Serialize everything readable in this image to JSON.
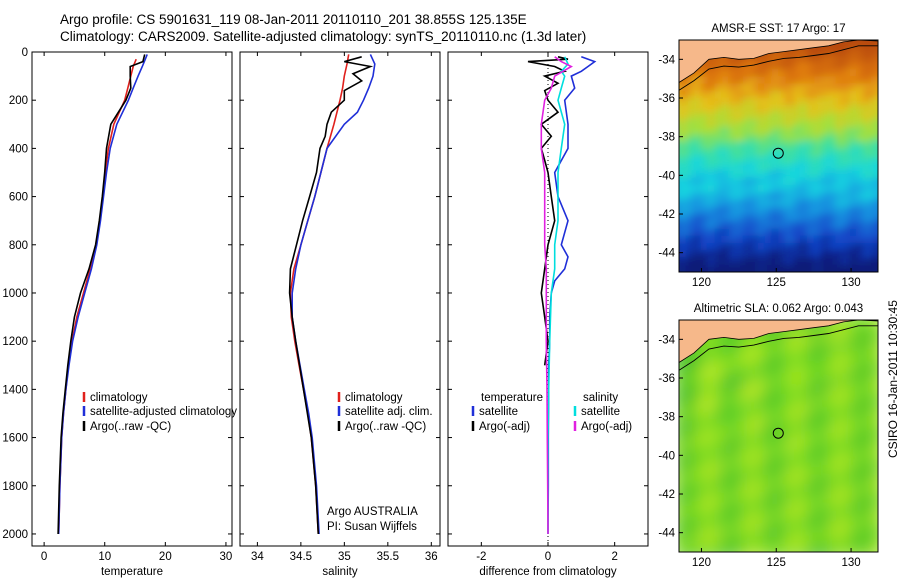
{
  "header": {
    "line1": "Argo profile: CS 5901631_119 08-Jan-2011 20110110_201 38.855S 125.135E",
    "line2": "Climatology: CARS2009. Satellite-adjusted climatology: synTS_20110110.nc (1.3d later)"
  },
  "side_stamp": "CSIRO 16-Jan-2011 10:30:45",
  "colors": {
    "climatology": "#e0201c",
    "satellite": "#1f2fd8",
    "argo": "#000000",
    "sat_salinity": "#00dede",
    "argo_salinity": "#e020e0",
    "land": "#f6b88a"
  },
  "chart_data": [
    {
      "id": "temperature",
      "type": "line",
      "xlabel": "temperature",
      "ylabel": "",
      "xlim": [
        -2,
        31
      ],
      "ylim": [
        2050,
        0
      ],
      "xticks": [
        0,
        10,
        20,
        30
      ],
      "yticks": [
        0,
        200,
        400,
        600,
        800,
        1000,
        1200,
        1400,
        1600,
        1800,
        2000
      ],
      "legend": [
        "climatology",
        "satellite-adjusted climatology",
        "Argo(..raw -QC)"
      ],
      "series": [
        {
          "name": "climatology",
          "color": "#e0201c",
          "y": [
            30,
            60,
            100,
            150,
            200,
            300,
            400,
            500,
            600,
            700,
            800,
            900,
            1000,
            1100,
            1200,
            1300,
            1400,
            1500,
            1600,
            1800,
            2000
          ],
          "x": [
            15.2,
            14.7,
            14.3,
            13.8,
            13.3,
            11.5,
            10.6,
            10.1,
            9.7,
            9.2,
            8.6,
            7.6,
            6.5,
            5.4,
            4.6,
            4.0,
            3.6,
            3.2,
            2.9,
            2.6,
            2.4
          ]
        },
        {
          "name": "satellite-adjusted climatology",
          "color": "#1f2fd8",
          "y": [
            10,
            30,
            60,
            100,
            150,
            200,
            300,
            400,
            500,
            600,
            700,
            800,
            900,
            1000,
            1100,
            1200,
            1300,
            1400,
            1500,
            1600,
            1800,
            2000
          ],
          "x": [
            17.0,
            16.7,
            16.2,
            15.5,
            14.7,
            13.9,
            12.0,
            10.9,
            10.3,
            9.8,
            9.3,
            8.7,
            7.8,
            6.7,
            5.6,
            4.7,
            4.1,
            3.6,
            3.2,
            2.9,
            2.6,
            2.4
          ]
        },
        {
          "name": "Argo(..raw -QC)",
          "color": "#000000",
          "y": [
            10,
            40,
            60,
            100,
            150,
            200,
            300,
            400,
            500,
            600,
            700,
            800,
            900,
            1000,
            1100,
            1200,
            1300,
            1400,
            1500,
            1600,
            1800,
            2000
          ],
          "x": [
            16.6,
            16.3,
            14.2,
            14.2,
            14.3,
            13.5,
            11.0,
            10.3,
            10.0,
            9.6,
            9.1,
            8.5,
            7.4,
            6.0,
            5.0,
            4.4,
            3.9,
            3.5,
            3.1,
            2.8,
            2.5,
            2.3
          ]
        }
      ]
    },
    {
      "id": "salinity",
      "type": "line",
      "xlabel": "salinity",
      "ylabel": "",
      "xlim": [
        33.8,
        36.1
      ],
      "ylim": [
        2050,
        0
      ],
      "xticks": [
        34,
        34.5,
        35,
        35.5,
        36
      ],
      "legend": [
        "climatology",
        "satellite adj. clim.",
        "Argo(..raw -QC)"
      ],
      "annotation": [
        "Argo AUSTRALIA",
        "PI: Susan Wijffels"
      ],
      "series": [
        {
          "name": "climatology",
          "color": "#e0201c",
          "y": [
            10,
            50,
            100,
            150,
            200,
            300,
            400,
            500,
            600,
            700,
            800,
            900,
            1000,
            1100,
            1200,
            1300,
            1400,
            1500,
            1600,
            1800,
            2000
          ],
          "x": [
            35.05,
            35.03,
            35.0,
            34.98,
            34.95,
            34.88,
            34.8,
            34.73,
            34.66,
            34.58,
            34.5,
            34.42,
            34.38,
            34.39,
            34.43,
            34.48,
            34.53,
            34.58,
            34.62,
            34.67,
            34.7
          ]
        },
        {
          "name": "satellite adj. clim.",
          "color": "#1f2fd8",
          "y": [
            10,
            50,
            100,
            150,
            200,
            250,
            300,
            400,
            500,
            600,
            700,
            800,
            900,
            1000,
            1100,
            1200,
            1300,
            1400,
            1500,
            1600,
            1800,
            2000
          ],
          "x": [
            35.3,
            35.35,
            35.33,
            35.28,
            35.22,
            35.15,
            35.0,
            34.8,
            34.73,
            34.66,
            34.58,
            34.5,
            34.44,
            34.4,
            34.4,
            34.44,
            34.49,
            34.54,
            34.59,
            34.63,
            34.68,
            34.71
          ]
        },
        {
          "name": "Argo(..raw -QC)",
          "color": "#000000",
          "y": [
            20,
            40,
            60,
            90,
            120,
            160,
            200,
            250,
            300,
            350,
            400,
            500,
            600,
            700,
            800,
            900,
            1000,
            1100,
            1200,
            1400,
            1600,
            1800,
            2000
          ],
          "x": [
            35.2,
            35.0,
            35.3,
            35.1,
            35.2,
            35.0,
            35.0,
            34.85,
            34.8,
            34.78,
            34.72,
            34.68,
            34.6,
            34.52,
            34.45,
            34.38,
            34.37,
            34.4,
            34.44,
            34.53,
            34.62,
            34.67,
            34.7
          ]
        }
      ]
    },
    {
      "id": "difference",
      "type": "line",
      "xlabel": "difference from climatology",
      "ylabel": "",
      "xlim": [
        -3,
        3
      ],
      "ylim": [
        2050,
        0
      ],
      "xticks": [
        -2,
        0,
        2
      ],
      "legend_temperature": [
        "temperature",
        "satellite",
        "Argo(-adj)"
      ],
      "legend_salinity": [
        "salinity",
        "satellite",
        "Argo(-adj)"
      ],
      "series": [
        {
          "name": "satellite",
          "group": "temperature",
          "color": "#1f2fd8",
          "y": [
            20,
            40,
            60,
            80,
            100,
            150,
            200,
            300,
            400,
            500,
            600,
            700,
            800,
            850,
            900,
            950,
            1000,
            1100,
            1200,
            1300,
            1400,
            1600,
            1800,
            2000
          ],
          "x": [
            1.0,
            1.4,
            1.2,
            1.0,
            0.7,
            0.8,
            0.5,
            0.6,
            0.6,
            0.2,
            0.3,
            0.6,
            0.4,
            0.6,
            0.5,
            0.2,
            0.1,
            0.05,
            0.05,
            0.02,
            0.02,
            0.01,
            0.01,
            0.0
          ]
        },
        {
          "name": "Argo(-adj)",
          "group": "temperature",
          "color": "#000000",
          "y": [
            20,
            30,
            40,
            60,
            80,
            100,
            130,
            160,
            200,
            250,
            300,
            350,
            400,
            450,
            500,
            600,
            700,
            800,
            900,
            1000,
            1100,
            1200,
            1300
          ],
          "x": [
            0.3,
            0.6,
            -0.6,
            0.2,
            0.5,
            -0.1,
            0.3,
            -0.1,
            0.0,
            0.3,
            -0.2,
            0.1,
            -0.2,
            -0.1,
            0.0,
            0.1,
            0.2,
            0.0,
            -0.1,
            -0.2,
            -0.1,
            0.0,
            -0.1
          ]
        },
        {
          "name": "satellite",
          "group": "salinity",
          "color": "#00dede",
          "y": [
            20,
            50,
            80,
            100,
            150,
            200,
            300,
            400,
            500,
            600,
            700,
            800,
            900,
            1000,
            1200,
            1400,
            1600,
            1800,
            2000
          ],
          "x": [
            0.5,
            0.6,
            0.4,
            0.5,
            0.4,
            0.3,
            0.5,
            0.4,
            0.3,
            0.3,
            0.3,
            0.2,
            0.2,
            0.1,
            0.05,
            0.02,
            0.0,
            0.0,
            0.0
          ]
        },
        {
          "name": "Argo(-adj)",
          "group": "salinity",
          "color": "#e020e0",
          "y": [
            20,
            40,
            60,
            100,
            150,
            200,
            300,
            400,
            500,
            600,
            700,
            800,
            900,
            1000,
            1200,
            1400,
            1600,
            1800,
            2000
          ],
          "x": [
            0.2,
            0.4,
            0.7,
            0.2,
            0.1,
            -0.1,
            -0.2,
            -0.2,
            -0.1,
            -0.1,
            -0.1,
            -0.1,
            -0.05,
            -0.05,
            -0.05,
            -0.03,
            -0.02,
            -0.01,
            0.0
          ]
        }
      ]
    },
    {
      "id": "sst-map",
      "type": "heatmap",
      "title": "AMSR-E SST: 17 Argo: 17",
      "xlim": [
        118.5,
        131.8
      ],
      "ylim": [
        -45,
        -33
      ],
      "xticks": [
        120,
        125,
        130
      ],
      "yticks": [
        -34,
        -36,
        -38,
        -40,
        -42,
        -44
      ],
      "marker": {
        "lon": 125.135,
        "lat": -38.855
      }
    },
    {
      "id": "sla-map",
      "type": "heatmap",
      "title": "Altimetric SLA: 0.062 Argo: 0.043",
      "xlim": [
        118.5,
        131.8
      ],
      "ylim": [
        -45,
        -33
      ],
      "xticks": [
        120,
        125,
        130
      ],
      "yticks": [
        -34,
        -36,
        -38,
        -40,
        -42,
        -44
      ],
      "marker": {
        "lon": 125.135,
        "lat": -38.855
      }
    }
  ]
}
